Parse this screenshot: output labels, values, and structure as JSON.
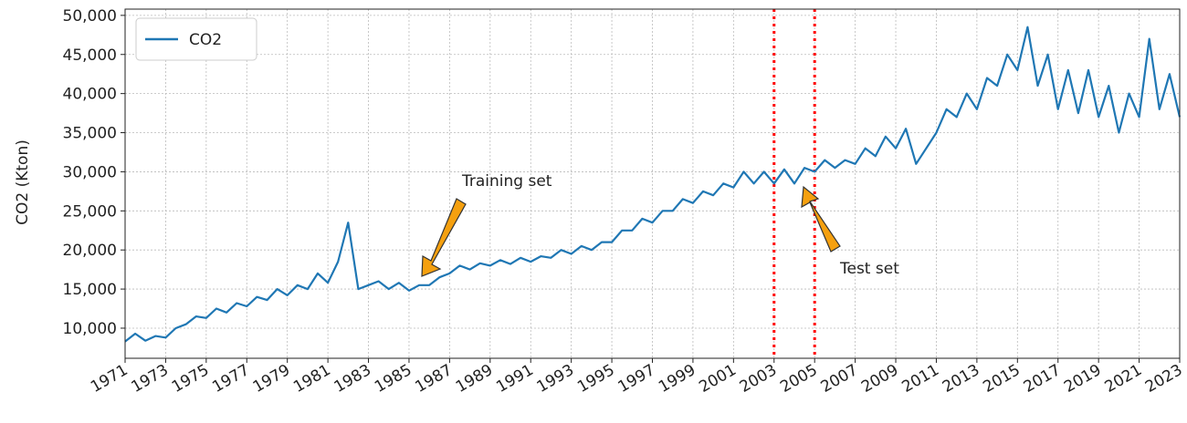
{
  "chart_data": {
    "type": "line",
    "ylabel": "CO2 (Kton)",
    "x": [
      1971,
      1971.5,
      1972,
      1972.5,
      1973,
      1973.5,
      1974,
      1974.5,
      1975,
      1975.5,
      1976,
      1976.5,
      1977,
      1977.5,
      1978,
      1978.5,
      1979,
      1979.5,
      1980,
      1980.5,
      1981,
      1981.5,
      1982,
      1982.5,
      1983,
      1983.5,
      1984,
      1984.5,
      1985,
      1985.5,
      1986,
      1986.5,
      1987,
      1987.5,
      1988,
      1988.5,
      1989,
      1989.5,
      1990,
      1990.5,
      1991,
      1991.5,
      1992,
      1992.5,
      1993,
      1993.5,
      1994,
      1994.5,
      1995,
      1995.5,
      1996,
      1996.5,
      1997,
      1997.5,
      1998,
      1998.5,
      1999,
      1999.5,
      2000,
      2000.5,
      2001,
      2001.5,
      2002,
      2002.5,
      2003,
      2003.5,
      2004,
      2004.5,
      2005,
      2005.5,
      2006,
      2006.5,
      2007,
      2007.5,
      2008,
      2008.5,
      2009,
      2009.5,
      2010,
      2010.5,
      2011,
      2011.5,
      2012,
      2012.5,
      2013,
      2013.5,
      2014,
      2014.5,
      2015,
      2015.5,
      2016,
      2016.5,
      2017,
      2017.5,
      2018,
      2018.5,
      2019,
      2019.5,
      2020,
      2020.5,
      2021,
      2021.5,
      2022,
      2022.5,
      2023
    ],
    "series": [
      {
        "name": "CO2",
        "color": "#1f77b4",
        "values": [
          8300,
          9300,
          8400,
          9000,
          8800,
          10000,
          10500,
          11500,
          11300,
          12500,
          12000,
          13200,
          12800,
          14000,
          13600,
          15000,
          14200,
          15500,
          15000,
          17000,
          15800,
          18500,
          23500,
          15000,
          15500,
          16000,
          15000,
          15800,
          14800,
          15500,
          15500,
          16500,
          17000,
          18000,
          17500,
          18300,
          18000,
          18700,
          18200,
          19000,
          18500,
          19200,
          19000,
          20000,
          19500,
          20500,
          20000,
          21000,
          21000,
          22500,
          22500,
          24000,
          23500,
          25000,
          25000,
          26500,
          26000,
          27500,
          27000,
          28500,
          28000,
          30000,
          28500,
          30000,
          28500,
          30300,
          28500,
          30500,
          30000,
          31500,
          30500,
          31500,
          31000,
          33000,
          32000,
          34500,
          33000,
          35500,
          31000,
          33000,
          35000,
          38000,
          37000,
          40000,
          38000,
          42000,
          41000,
          45000,
          43000,
          48500,
          41000,
          45000,
          38000,
          43000,
          37500,
          43000,
          37000,
          41000,
          35000,
          40000,
          37000,
          47000,
          38000,
          42500,
          37000
        ]
      }
    ],
    "xlim": [
      1971,
      2023
    ],
    "xticks": [
      1971,
      1973,
      1975,
      1977,
      1979,
      1981,
      1983,
      1985,
      1987,
      1989,
      1991,
      1993,
      1995,
      1997,
      1999,
      2001,
      2003,
      2005,
      2007,
      2009,
      2011,
      2013,
      2015,
      2017,
      2019,
      2021,
      2023
    ],
    "ylim": [
      6150,
      50800
    ],
    "yticks": [
      {
        "value": 10000,
        "label": "10,000"
      },
      {
        "value": 15000,
        "label": "15,000"
      },
      {
        "value": 20000,
        "label": "20,000"
      },
      {
        "value": 25000,
        "label": "25,000"
      },
      {
        "value": 30000,
        "label": "30,000"
      },
      {
        "value": 35000,
        "label": "35,000"
      },
      {
        "value": 40000,
        "label": "40,000"
      },
      {
        "value": 45000,
        "label": "45,000"
      },
      {
        "value": 50000,
        "label": "50,000"
      }
    ],
    "grid": true,
    "legend": "upper left",
    "vlines": [
      2003,
      2005
    ],
    "vline_color": "#ff0000",
    "annotations": [
      "Training set",
      "Test set"
    ]
  }
}
